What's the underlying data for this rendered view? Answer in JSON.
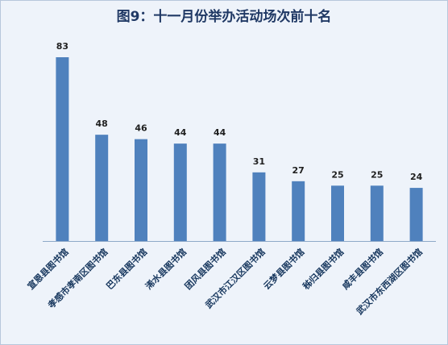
{
  "chart_data": {
    "type": "bar",
    "title": "图9：十一月份举办活动场次前十名",
    "categories": [
      "宣恩县图书馆",
      "孝感市孝南区图书馆",
      "巴东县图书馆",
      "浠水县图书馆",
      "团风县图书馆",
      "武汉市江汉区图书馆",
      "云梦县图书馆",
      "秭归县图书馆",
      "咸丰县图书馆",
      "武汉市东西湖区图书馆"
    ],
    "values": [
      83,
      48,
      46,
      44,
      44,
      31,
      27,
      25,
      25,
      24
    ],
    "color": "#4f81bd"
  }
}
